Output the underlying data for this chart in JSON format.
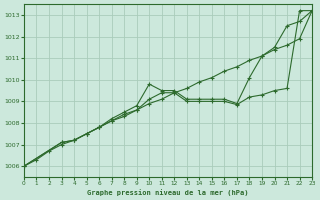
{
  "title": "Graphe pression niveau de la mer (hPa)",
  "bg_color": "#cce8dc",
  "grid_color": "#aaccbb",
  "line_color": "#2d6a2d",
  "marker_color": "#2d6a2d",
  "xlim": [
    0,
    23
  ],
  "ylim": [
    1005.5,
    1013.5
  ],
  "xticks": [
    0,
    1,
    2,
    3,
    4,
    5,
    6,
    7,
    8,
    9,
    10,
    11,
    12,
    13,
    14,
    15,
    16,
    17,
    18,
    19,
    20,
    21,
    22,
    23
  ],
  "yticks": [
    1006,
    1007,
    1008,
    1009,
    1010,
    1011,
    1012,
    1013
  ],
  "series": [
    {
      "x": [
        0,
        1,
        2,
        3,
        4,
        5,
        6,
        7,
        8,
        9,
        10,
        11,
        12,
        13,
        14,
        15,
        16,
        17,
        18,
        19,
        20,
        21,
        22,
        23
      ],
      "y": [
        1006.0,
        1006.3,
        1006.7,
        1007.0,
        1007.2,
        1007.5,
        1007.8,
        1008.1,
        1008.4,
        1008.6,
        1008.9,
        1009.1,
        1009.4,
        1009.6,
        1009.9,
        1010.1,
        1010.4,
        1010.6,
        1010.9,
        1011.1,
        1011.4,
        1011.6,
        1011.9,
        1013.2
      ],
      "marker": true
    },
    {
      "x": [
        0,
        3,
        4,
        5,
        6,
        7,
        8,
        9,
        10,
        11,
        12,
        13,
        14,
        15,
        16,
        17,
        18,
        19,
        20,
        21,
        22,
        23
      ],
      "y": [
        1006.0,
        1007.1,
        1007.2,
        1007.5,
        1007.8,
        1008.2,
        1008.5,
        1008.8,
        1009.8,
        1009.5,
        1009.5,
        1009.1,
        1009.1,
        1009.1,
        1009.1,
        1008.9,
        1010.1,
        1011.1,
        1011.5,
        1012.5,
        1012.7,
        1013.2
      ],
      "marker": true
    },
    {
      "x": [
        0,
        3,
        4,
        5,
        6,
        7,
        8,
        9,
        10,
        11,
        12,
        13,
        14,
        15,
        16,
        17,
        18,
        19,
        20,
        21,
        22,
        23
      ],
      "y": [
        1006.0,
        1007.1,
        1007.2,
        1007.5,
        1007.8,
        1008.1,
        1008.3,
        1008.6,
        1009.1,
        1009.4,
        1009.4,
        1009.0,
        1009.0,
        1009.0,
        1009.0,
        1008.85,
        1009.2,
        1009.3,
        1009.5,
        1009.6,
        1013.2,
        1013.2
      ],
      "marker": true
    }
  ]
}
